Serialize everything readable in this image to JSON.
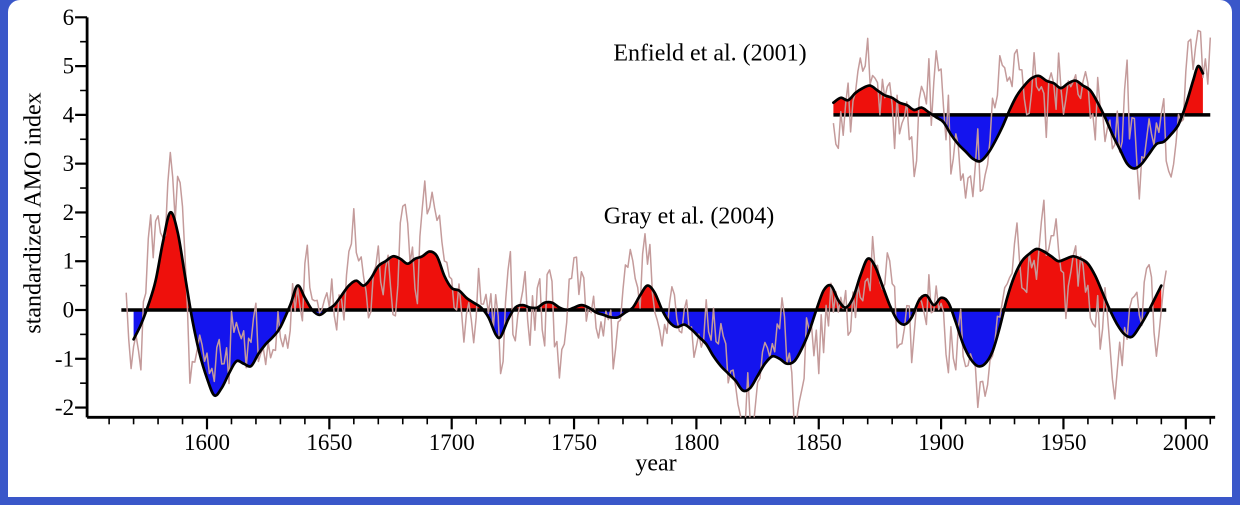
{
  "frame": {
    "color": "#3a57c9",
    "page_color": "#ffffff"
  },
  "chart_data": {
    "type": "line",
    "title": "",
    "xlabel": "year",
    "ylabel": "standardized AMO index",
    "xlim": [
      1551,
      2012
    ],
    "ylim": [
      -2.2,
      6
    ],
    "grid": false,
    "x_major_ticks": [
      1600,
      1650,
      1700,
      1750,
      1800,
      1850,
      1900,
      1950,
      2000
    ],
    "x_minor_step": 10,
    "y_major_ticks": [
      -2,
      -1,
      0,
      1,
      2,
      3,
      4,
      5,
      6
    ],
    "y_minor_step": 0.5,
    "colors": {
      "positive_fill": "#ee100c",
      "negative_fill": "#1414ee",
      "smooth_line": "#000000",
      "annual_line": "#c49b9b",
      "axis": "#000000",
      "text": "#000000"
    },
    "series": [
      {
        "name": "Enfield et al. (2001)",
        "offset": 4,
        "label": {
          "text": "Enfield et al. (2001)",
          "x": 1805,
          "y": 5.25
        },
        "baseline": {
          "start": 1856,
          "end": 2010
        },
        "annual_noise": {
          "seed": 42,
          "sigma": 0.5,
          "ar": 0.55,
          "start": 1856,
          "end": 2010
        },
        "smoothed": {
          "years": [
            1856,
            1859,
            1862,
            1865,
            1868,
            1871,
            1874,
            1877,
            1880,
            1883,
            1886,
            1889,
            1892,
            1895,
            1898,
            1901,
            1904,
            1907,
            1910,
            1913,
            1916,
            1919,
            1922,
            1925,
            1928,
            1931,
            1934,
            1937,
            1940,
            1943,
            1946,
            1949,
            1952,
            1955,
            1958,
            1961,
            1964,
            1967,
            1970,
            1973,
            1976,
            1979,
            1982,
            1985,
            1988,
            1991,
            1994,
            1997,
            2000,
            2003,
            2005,
            2007
          ],
          "values": [
            0.25,
            0.35,
            0.3,
            0.45,
            0.55,
            0.6,
            0.5,
            0.4,
            0.35,
            0.25,
            0.2,
            0.1,
            0.15,
            0.05,
            -0.05,
            -0.15,
            -0.4,
            -0.6,
            -0.75,
            -0.9,
            -0.95,
            -0.8,
            -0.55,
            -0.25,
            0.1,
            0.4,
            0.6,
            0.75,
            0.8,
            0.7,
            0.65,
            0.55,
            0.65,
            0.7,
            0.6,
            0.5,
            0.25,
            -0.05,
            -0.4,
            -0.7,
            -1.0,
            -1.1,
            -1.0,
            -0.8,
            -0.6,
            -0.55,
            -0.4,
            -0.2,
            0.2,
            0.7,
            1.0,
            0.85
          ]
        }
      },
      {
        "name": "Gray et al. (2004)",
        "offset": 0,
        "label": {
          "text": "Gray et al. (2004)",
          "x": 1797,
          "y": 1.9
        },
        "baseline": {
          "start": 1565,
          "end": 1992
        },
        "annual_noise": {
          "seed": 7,
          "sigma": 0.5,
          "ar": 0.55,
          "start": 1567,
          "end": 1992
        },
        "smoothed": {
          "years": [
            1570,
            1573,
            1576,
            1579,
            1582,
            1585,
            1588,
            1591,
            1594,
            1597,
            1600,
            1603,
            1606,
            1609,
            1612,
            1615,
            1618,
            1621,
            1624,
            1627,
            1630,
            1634,
            1637,
            1640,
            1643,
            1646,
            1649,
            1652,
            1655,
            1658,
            1661,
            1664,
            1667,
            1670,
            1673,
            1676,
            1679,
            1682,
            1685,
            1688,
            1691,
            1694,
            1697,
            1700,
            1703,
            1706,
            1709,
            1712,
            1715,
            1718,
            1720,
            1723,
            1726,
            1729,
            1732,
            1735,
            1738,
            1741,
            1744,
            1747,
            1750,
            1753,
            1756,
            1759,
            1762,
            1765,
            1768,
            1771,
            1774,
            1777,
            1780,
            1783,
            1786,
            1789,
            1792,
            1795,
            1798,
            1801,
            1804,
            1807,
            1810,
            1813,
            1816,
            1819,
            1822,
            1825,
            1828,
            1831,
            1834,
            1837,
            1840,
            1843,
            1846,
            1849,
            1852,
            1855,
            1858,
            1861,
            1864,
            1867,
            1870,
            1873,
            1876,
            1879,
            1882,
            1885,
            1888,
            1891,
            1894,
            1897,
            1900,
            1903,
            1906,
            1909,
            1912,
            1915,
            1918,
            1921,
            1924,
            1927,
            1930,
            1933,
            1936,
            1939,
            1942,
            1945,
            1948,
            1951,
            1954,
            1957,
            1960,
            1963,
            1966,
            1969,
            1972,
            1975,
            1978,
            1981,
            1984,
            1987,
            1990
          ],
          "values": [
            -0.6,
            -0.3,
            0.1,
            0.6,
            1.4,
            2.0,
            1.6,
            0.7,
            -0.2,
            -0.9,
            -1.4,
            -1.75,
            -1.6,
            -1.3,
            -1.05,
            -1.1,
            -1.15,
            -0.9,
            -0.7,
            -0.55,
            -0.35,
            0.1,
            0.5,
            0.25,
            0.0,
            -0.1,
            0.0,
            0.1,
            0.3,
            0.5,
            0.6,
            0.5,
            0.65,
            0.9,
            1.0,
            1.1,
            1.05,
            0.95,
            1.05,
            1.1,
            1.2,
            1.1,
            0.7,
            0.45,
            0.4,
            0.25,
            0.15,
            0.05,
            -0.15,
            -0.5,
            -0.55,
            -0.2,
            0.05,
            0.1,
            0.05,
            0.05,
            0.15,
            0.15,
            0.05,
            0.0,
            0.05,
            0.1,
            0.05,
            -0.05,
            -0.1,
            -0.15,
            -0.15,
            -0.05,
            0.05,
            0.3,
            0.5,
            0.35,
            0.0,
            -0.25,
            -0.35,
            -0.3,
            -0.4,
            -0.55,
            -0.7,
            -0.95,
            -1.15,
            -1.3,
            -1.45,
            -1.65,
            -1.6,
            -1.35,
            -1.1,
            -0.95,
            -1.0,
            -1.1,
            -1.05,
            -0.8,
            -0.45,
            0.0,
            0.4,
            0.5,
            0.2,
            0.05,
            0.25,
            0.7,
            1.05,
            0.9,
            0.5,
            0.1,
            -0.2,
            -0.3,
            -0.15,
            0.2,
            0.3,
            0.1,
            0.25,
            0.15,
            -0.25,
            -0.7,
            -1.0,
            -1.15,
            -1.1,
            -0.85,
            -0.35,
            0.25,
            0.7,
            1.0,
            1.15,
            1.25,
            1.2,
            1.1,
            1.0,
            1.05,
            1.1,
            1.05,
            0.95,
            0.7,
            0.35,
            0.0,
            -0.3,
            -0.5,
            -0.55,
            -0.35,
            -0.1,
            0.2,
            0.5
          ]
        }
      }
    ]
  }
}
